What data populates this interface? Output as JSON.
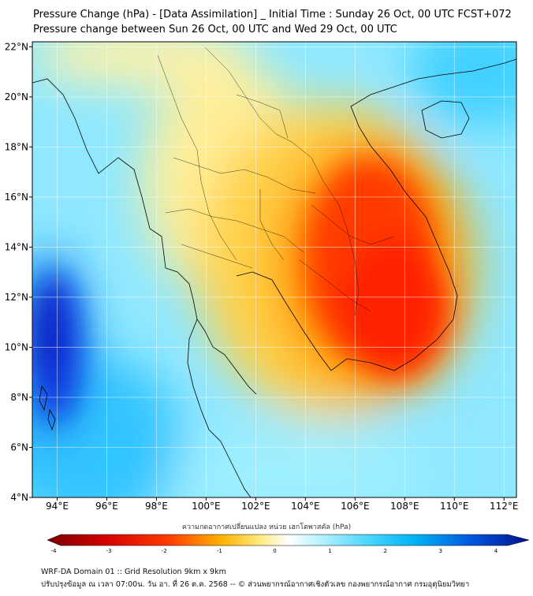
{
  "title_line1": "Pressure Change (hPa) - [Data Assimilation] _ Initial Time : Sunday 26 Oct, 00 UTC FCST+072",
  "title_line2": "Pressure change between Sun 26 Oct, 00 UTC and Wed 29 Oct, 00 UTC",
  "map": {
    "lon_range": [
      93,
      112.5
    ],
    "lat_range": [
      4,
      22.2
    ],
    "lon_ticks": [
      "94°E",
      "96°E",
      "98°E",
      "100°E",
      "102°E",
      "104°E",
      "106°E",
      "108°E",
      "110°E",
      "112°E"
    ],
    "lat_ticks": [
      "22°N",
      "20°N",
      "18°N",
      "16°N",
      "14°N",
      "12°N",
      "10°N",
      "8°N",
      "6°N",
      "4°N"
    ],
    "lon_tick_values": [
      94,
      96,
      98,
      100,
      102,
      104,
      106,
      108,
      110,
      112
    ],
    "lat_tick_values": [
      22,
      20,
      18,
      16,
      14,
      12,
      10,
      8,
      6,
      4
    ],
    "grid": true
  },
  "colorbar": {
    "title": "ความกดอากาศเปลี่ยนแปลง หน่วย เฮกโตพาสคัล (hPa)",
    "min": -4,
    "max": 4,
    "tick_labels": [
      "-4",
      "-3",
      "-2",
      "-1",
      "0",
      "1",
      "2",
      "3",
      "4"
    ],
    "tick_values": [
      -4,
      -3,
      -2,
      -1,
      0,
      1,
      2,
      3,
      4
    ]
  },
  "footer_line1": "WRF-DA Domain 01 :: Grid Resolution 9km x 9km",
  "footer_line2": "ปรับปรุงข้อมูล ณ เวลา 07:00น. วัน อา. ที่ 26 ต.ค. 2568 -- © ส่วนพยากรณ์อากาศเชิงตัวเลข กองพยากรณ์อากาศ กรมอุตุนิยมวิทยา",
  "colors": {
    "deep_fall": "#8b0000",
    "fall": "#ff2a00",
    "slight_fall": "#ffe680",
    "neutral": "#ffffff",
    "slight_rise": "#8fe8ff",
    "rise": "#00b8ff",
    "strong_rise": "#0a2dd8"
  }
}
